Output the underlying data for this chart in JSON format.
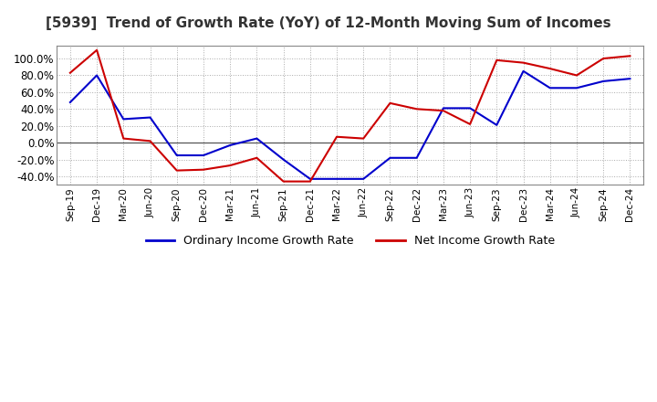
{
  "title": "[5939]  Trend of Growth Rate (YoY) of 12-Month Moving Sum of Incomes",
  "title_fontsize": 11,
  "ylim": [
    -50,
    115
  ],
  "yticks": [
    -40,
    -20,
    0,
    20,
    40,
    60,
    80,
    100
  ],
  "ytick_labels": [
    "-40.0%",
    "-20.0%",
    "0.0%",
    "20.0%",
    "40.0%",
    "60.0%",
    "80.0%",
    "100.0%"
  ],
  "background_color": "#ffffff",
  "grid_color": "#aaaaaa",
  "ordinary_color": "#0000cc",
  "net_color": "#cc0000",
  "legend_ordinary": "Ordinary Income Growth Rate",
  "legend_net": "Net Income Growth Rate",
  "x_labels": [
    "Sep-19",
    "Dec-19",
    "Mar-20",
    "Jun-20",
    "Sep-20",
    "Dec-20",
    "Mar-21",
    "Jun-21",
    "Sep-21",
    "Dec-21",
    "Mar-22",
    "Jun-22",
    "Sep-22",
    "Dec-22",
    "Mar-23",
    "Jun-23",
    "Sep-23",
    "Dec-23",
    "Mar-24",
    "Jun-24",
    "Sep-24",
    "Dec-24"
  ],
  "ordinary_values": [
    48,
    80,
    28,
    30,
    -15,
    -15,
    -3,
    5,
    -20,
    -43,
    -43,
    -43,
    -18,
    -18,
    41,
    41,
    21,
    85,
    65,
    65,
    73,
    76
  ],
  "net_values": [
    83,
    110,
    5,
    2,
    -33,
    -32,
    -27,
    -18,
    -46,
    -46,
    7,
    5,
    47,
    40,
    38,
    22,
    98,
    95,
    88,
    80,
    100,
    103
  ]
}
